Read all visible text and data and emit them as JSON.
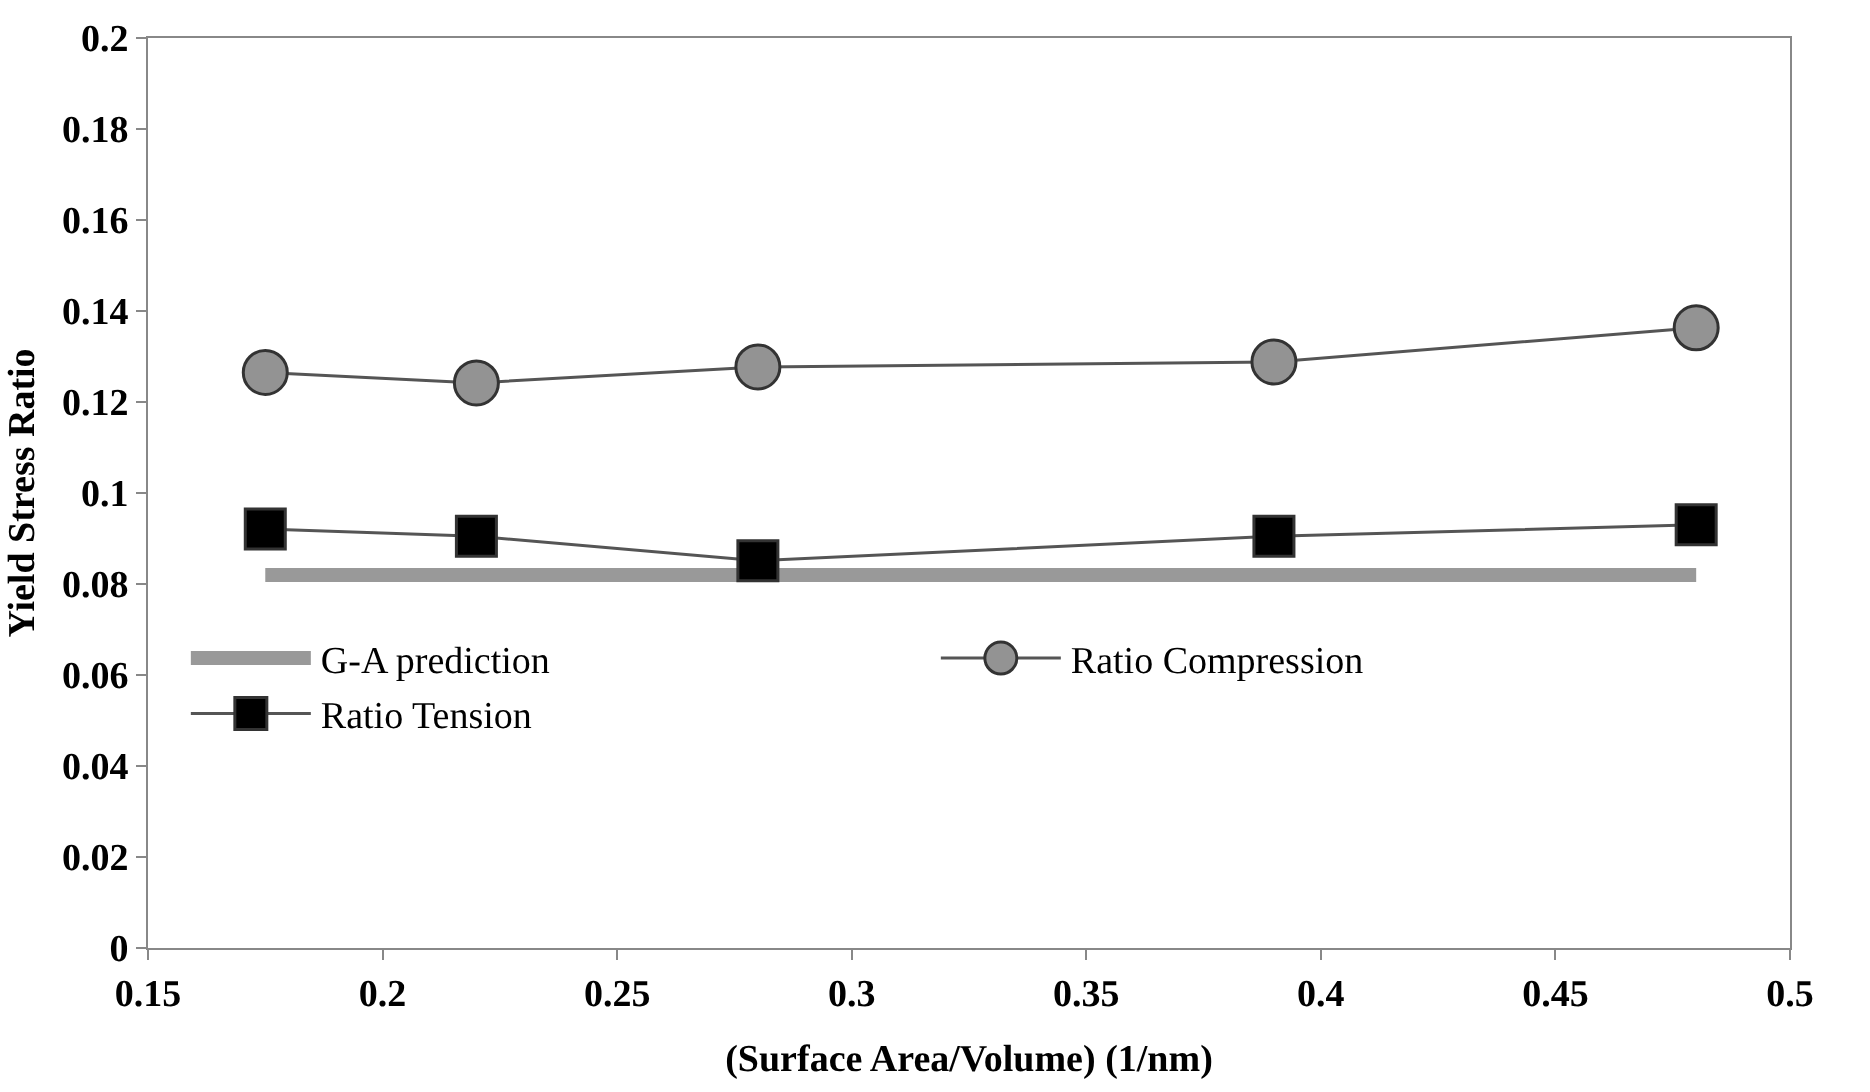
{
  "chart_data": {
    "type": "line",
    "xlabel": "(Surface Area/Volume) (1/nm)",
    "ylabel": "Yield Stress Ratio",
    "x": [
      0.175,
      0.22,
      0.28,
      0.39,
      0.48
    ],
    "series": [
      {
        "name": "G-A prediction",
        "color": "#999999",
        "values": [
          0.082,
          0.082,
          0.082,
          0.082,
          0.082
        ],
        "marker": "none"
      },
      {
        "name": "Ratio Compression",
        "color": "#939393",
        "values": [
          0.1265,
          0.1242,
          0.1277,
          0.1288,
          0.1363
        ],
        "marker": "circle"
      },
      {
        "name": "Ratio Tension",
        "color": "#000000",
        "values": [
          0.0921,
          0.0905,
          0.0851,
          0.0905,
          0.093
        ],
        "marker": "square"
      }
    ],
    "xlim": [
      0.15,
      0.5
    ],
    "xticks": [
      0.15,
      0.2,
      0.25,
      0.3,
      0.35,
      0.4,
      0.45,
      0.5
    ],
    "ylim": [
      0,
      0.2
    ],
    "yticks": [
      0,
      0.02,
      0.04,
      0.06,
      0.08,
      0.1,
      0.12,
      0.14,
      0.16,
      0.18,
      0.2
    ],
    "legend": "bottom left"
  }
}
